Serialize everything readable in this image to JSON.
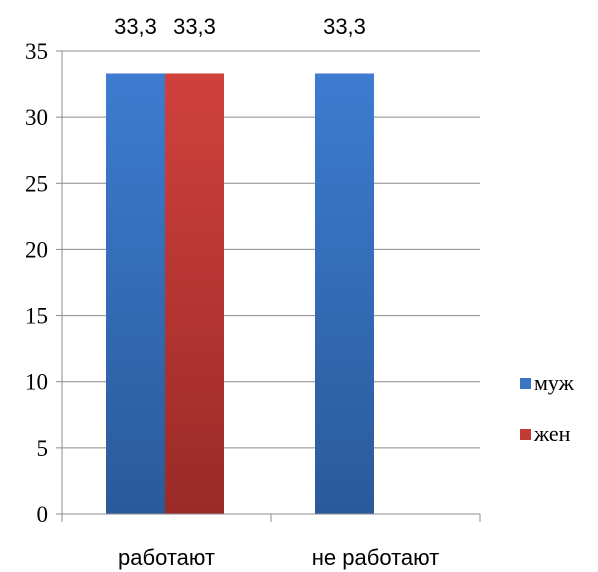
{
  "chart_data": {
    "type": "bar",
    "categories": [
      "работают",
      "не работают"
    ],
    "series": [
      {
        "name": "муж",
        "values": [
          33.3,
          33.3
        ],
        "color": "#3a74c4"
      },
      {
        "name": "жен",
        "values": [
          33.3,
          null
        ],
        "color": "#c23b36"
      }
    ],
    "data_labels": [
      [
        "33,3",
        "33,3"
      ],
      [
        "33,3",
        ""
      ]
    ],
    "yticks": [
      "0",
      "5",
      "10",
      "15",
      "20",
      "25",
      "30",
      "35"
    ],
    "ylim": [
      0,
      35
    ],
    "grid": true,
    "legend_position": "right"
  }
}
